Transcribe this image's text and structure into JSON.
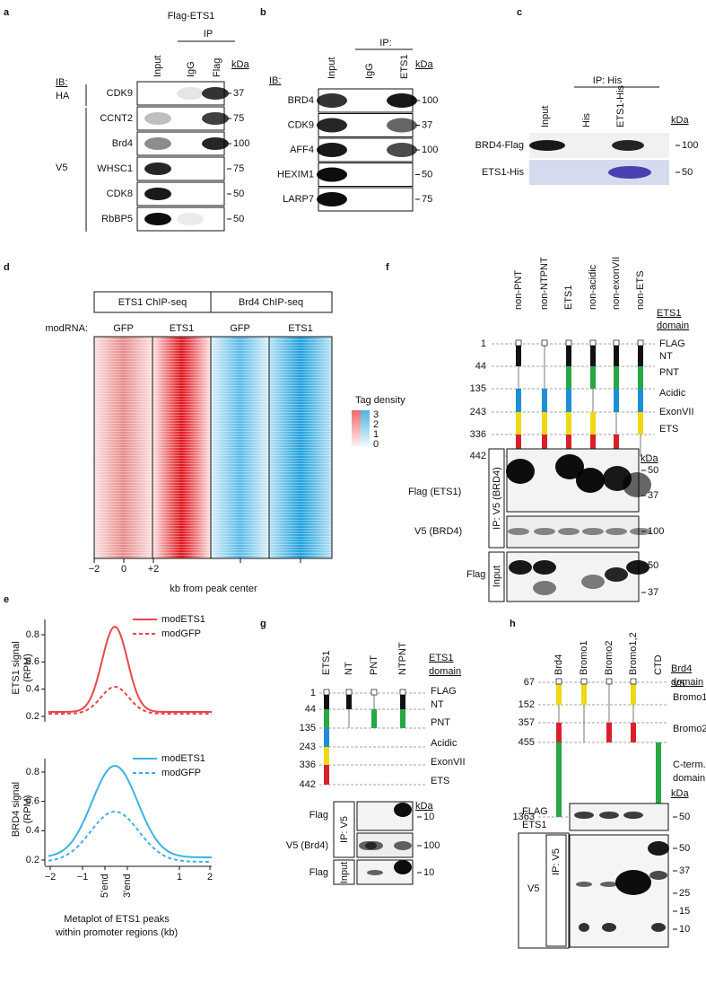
{
  "a": {
    "letter": "a",
    "construct": "Flag-ETS1",
    "ip": "IP",
    "lanes": [
      "Input",
      "IgG",
      "Flag"
    ],
    "kda_unit": "kDa",
    "ib": "IB:",
    "groups": [
      "HA",
      "V5"
    ],
    "rows": [
      {
        "label": "CDK9",
        "kda": 37
      },
      {
        "label": "CCNT2",
        "kda": 75
      },
      {
        "label": "Brd4",
        "kda": 100
      },
      {
        "label": "WHSC1",
        "kda": 75
      },
      {
        "label": "CDK8",
        "kda": 50
      },
      {
        "label": "RbBP5",
        "kda": 50
      }
    ]
  },
  "b": {
    "letter": "b",
    "ip": "IP:",
    "lanes": [
      "Input",
      "IgG",
      "ETS1"
    ],
    "kda_unit": "kDa",
    "ib": "IB:",
    "rows": [
      {
        "label": "BRD4",
        "kda": 100
      },
      {
        "label": "CDK9",
        "kda": 37
      },
      {
        "label": "AFF4",
        "kda": 100
      },
      {
        "label": "HEXIM1",
        "kda": 50
      },
      {
        "label": "LARP7",
        "kda": 75
      }
    ]
  },
  "c": {
    "letter": "c",
    "ip": "IP: His",
    "lanes": [
      "Input",
      "His",
      "ETS1-His"
    ],
    "kda_unit": "kDa",
    "rows": [
      {
        "label": "BRD4-Flag",
        "kda": 100
      },
      {
        "label": "ETS1-His",
        "kda": 50
      }
    ]
  },
  "d": {
    "letter": "d",
    "headers": [
      "ETS1 ChIP-seq",
      "Brd4 ChIP-seq"
    ],
    "modrna": "modRNA:",
    "columns": [
      "GFP",
      "ETS1",
      "GFP",
      "ETS1"
    ],
    "legend_title": "Tag density",
    "legend_levels": [
      3,
      2,
      1,
      0
    ],
    "xticks": [
      "−2",
      "0",
      "+2"
    ],
    "xlabel": "kb from peak center"
  },
  "e": {
    "letter": "e",
    "top": {
      "ylabel": [
        "ETS1 signal",
        "(RPM)"
      ],
      "yticks": [
        0.8,
        0.6,
        0.4,
        0.2
      ],
      "legend": [
        "modETS1",
        "modGFP"
      ]
    },
    "bottom": {
      "ylabel": [
        "BRD4 signal",
        "(RPM)"
      ],
      "yticks": [
        0.8,
        0.6,
        0.4,
        0.2
      ],
      "legend": [
        "modETS1",
        "modGFP"
      ]
    },
    "xticks": [
      "−2",
      "−1",
      "1",
      "2"
    ],
    "xmarks": [
      "5'end",
      "3'end"
    ],
    "xlabel": [
      "Metaplot of ETS1 peaks",
      "within promoter regions (kb)"
    ]
  },
  "f": {
    "letter": "f",
    "constructs": [
      "non-PNT",
      "non-NTPNT",
      "ETS1",
      "non-acidic",
      "non-exonVII",
      "non-ETS"
    ],
    "domain_header": [
      "ETS1",
      "domain"
    ],
    "positions": [
      1,
      44,
      135,
      243,
      336,
      442
    ],
    "domains": [
      "FLAG",
      "NT",
      "PNT",
      "Acidic",
      "ExonVII",
      "ETS"
    ],
    "kda_unit": "kDa",
    "flag_label": "Flag (ETS1)",
    "ip": "IP: V5 (BRD4)",
    "flag_kda": [
      50,
      37
    ],
    "v5_label": "V5 (BRD4)",
    "v5_kda": 100,
    "input_label": "Flag",
    "input": "Input",
    "input_kda": [
      50,
      37
    ]
  },
  "g": {
    "letter": "g",
    "constructs": [
      "ETS1",
      "NT",
      "PNT",
      "NTPNT"
    ],
    "domain_header": [
      "ETS1",
      "domain"
    ],
    "positions": [
      1,
      44,
      135,
      243,
      336,
      442
    ],
    "domains": [
      "FLAG",
      "NT",
      "PNT",
      "Acidic",
      "ExonVII",
      "ETS"
    ],
    "kda_unit": "kDa",
    "flag_label": "Flag",
    "ip": "IP: V5",
    "flag_kda": 10,
    "v5_label": "V5 (Brd4)",
    "v5_kda": 100,
    "input_label": "Flag",
    "input": "Input",
    "input_kda": 10
  },
  "h": {
    "letter": "h",
    "constructs": [
      "Brd4",
      "Bromo1",
      "Bromo2",
      "Bromo1,2",
      "CTD"
    ],
    "domain_header": [
      "Brd4",
      "domain"
    ],
    "positions": [
      67,
      152,
      357,
      455,
      1363
    ],
    "domains": [
      "V5",
      "Bromo1",
      "Bromo2"
    ],
    "cterm": [
      "C-term.",
      "domain"
    ],
    "kda_unit": "kDa",
    "flag_label": [
      "FLAG",
      "ETS1"
    ],
    "flag_kda": 50,
    "ip": "IP: V5",
    "v5_label": "V5",
    "v5_kda": [
      50,
      37,
      25,
      15,
      10
    ]
  }
}
